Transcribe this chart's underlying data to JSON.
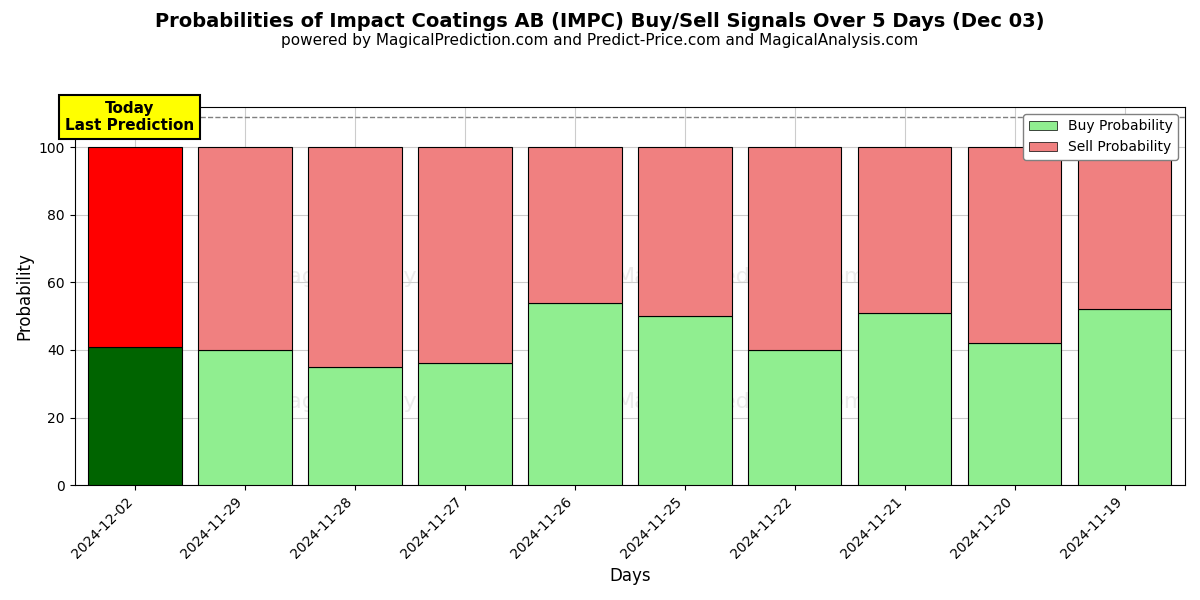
{
  "title": "Probabilities of Impact Coatings AB (IMPC) Buy/Sell Signals Over 5 Days (Dec 03)",
  "subtitle": "powered by MagicalPrediction.com and Predict-Price.com and MagicalAnalysis.com",
  "xlabel": "Days",
  "ylabel": "Probability",
  "categories": [
    "2024-12-02",
    "2024-11-29",
    "2024-11-28",
    "2024-11-27",
    "2024-11-26",
    "2024-11-25",
    "2024-11-22",
    "2024-11-21",
    "2024-11-20",
    "2024-11-19"
  ],
  "buy_values": [
    41,
    40,
    35,
    36,
    54,
    50,
    40,
    51,
    42,
    52
  ],
  "sell_values": [
    59,
    60,
    65,
    64,
    46,
    50,
    60,
    49,
    58,
    48
  ],
  "today_buy_color": "#006400",
  "today_sell_color": "#ff0000",
  "other_buy_color": "#90EE90",
  "other_sell_color": "#F08080",
  "ylim": [
    0,
    112
  ],
  "yticks": [
    0,
    20,
    40,
    60,
    80,
    100
  ],
  "dashed_line_y": 109,
  "annotation_text": "Today\nLast Prediction",
  "background_color": "#ffffff",
  "grid_color": "#cccccc",
  "title_fontsize": 14,
  "subtitle_fontsize": 11,
  "bar_width": 0.85
}
